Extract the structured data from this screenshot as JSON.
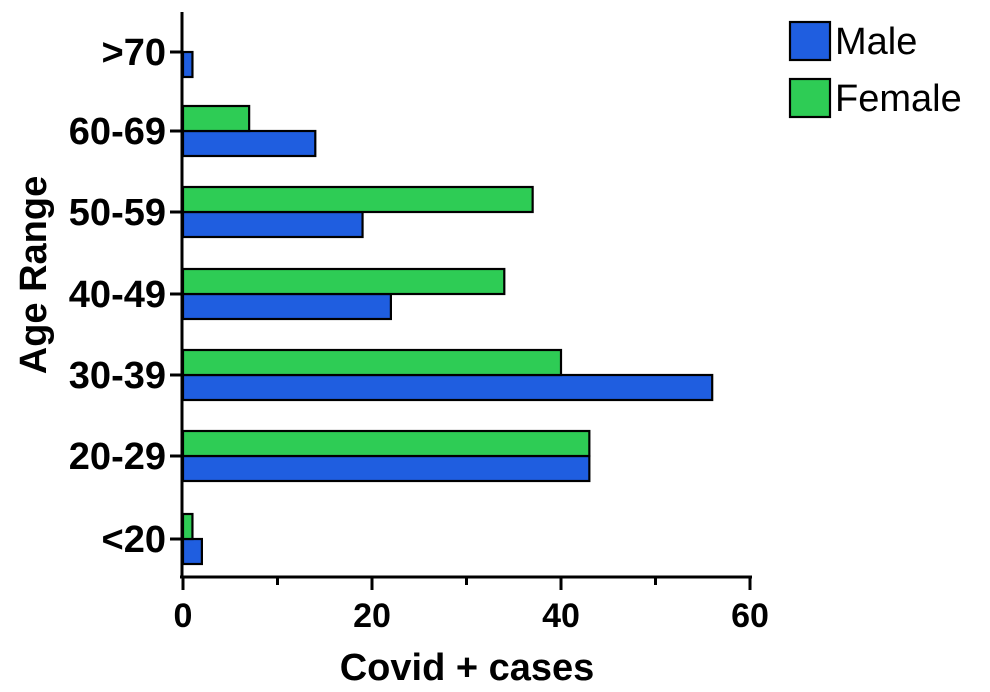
{
  "chart_data": {
    "type": "bar",
    "orientation": "horizontal",
    "categories": [
      "<20",
      "20-29",
      "30-39",
      "40-49",
      "50-59",
      "60-69",
      ">70"
    ],
    "series": [
      {
        "name": "Male",
        "color": "#1f5ee0",
        "values": [
          2,
          43,
          56,
          22,
          19,
          14,
          1
        ]
      },
      {
        "name": "Female",
        "color": "#2ecc55",
        "values": [
          1,
          43,
          40,
          34,
          37,
          7,
          0
        ]
      }
    ],
    "xlabel": "Covid + cases",
    "ylabel": "Age Range",
    "xlim": [
      0,
      60
    ],
    "xticks": [
      0,
      20,
      40,
      60
    ],
    "grid": false,
    "legend_position": "top-right"
  }
}
